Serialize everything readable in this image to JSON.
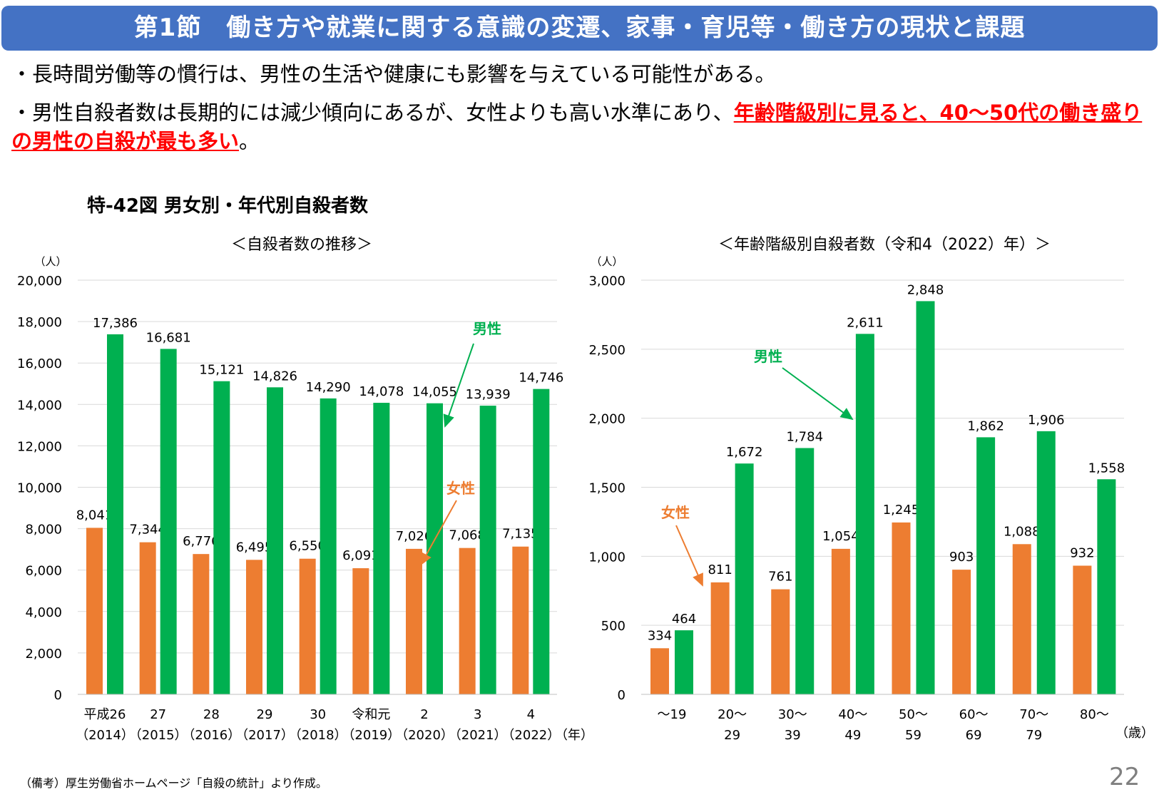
{
  "header": {
    "title": "第1節　働き方や就業に関する意識の変遷、家事・育児等・働き方の現状と課題"
  },
  "bullets": [
    {
      "text": "・長時間労働等の慣行は、男性の生活や健康にも影響を与えている可能性がある。"
    },
    {
      "text": "・男性自殺者数は長期的には減少傾向にあるが、女性よりも高い水準にあり、",
      "highlight": "年齢階級別に見ると、40～50代の働き盛りの男性の自殺が最も多い",
      "end": "。"
    }
  ],
  "figure_title": "特-42図 男女別・年代別自殺者数",
  "colors": {
    "header": "#4472C4",
    "female": "#ED7D31",
    "male": "#00B050",
    "highlight": "#FF0000"
  },
  "chart_data": [
    {
      "type": "bar",
      "title": "＜自殺者数の推移＞",
      "yunit": "（人）",
      "xunit": "（年）",
      "ylim": [
        0,
        20000
      ],
      "yticks": [
        "0",
        "2,000",
        "4,000",
        "6,000",
        "8,000",
        "10,000",
        "12,000",
        "14,000",
        "16,000",
        "18,000",
        "20,000"
      ],
      "grid": true,
      "categories": [
        [
          "平成26",
          "（2014）"
        ],
        [
          "27",
          "（2015）"
        ],
        [
          "28",
          "（2016）"
        ],
        [
          "29",
          "（2017）"
        ],
        [
          "30",
          "（2018）"
        ],
        [
          "令和元",
          "（2019）"
        ],
        [
          "2",
          "（2020）"
        ],
        [
          "3",
          "（2021）"
        ],
        [
          "4",
          "（2022）"
        ]
      ],
      "series": [
        {
          "name": "女性",
          "values": [
            8041,
            7344,
            6776,
            6495,
            6550,
            6091,
            7026,
            7068,
            7135
          ]
        },
        {
          "name": "男性",
          "values": [
            17386,
            16681,
            15121,
            14826,
            14290,
            14078,
            14055,
            13939,
            14746
          ]
        }
      ]
    },
    {
      "type": "bar",
      "title": "＜年齢階級別自殺者数（令和4（2022）年）＞",
      "yunit": "（人）",
      "xunit": "（歳）",
      "ylim": [
        0,
        3000
      ],
      "yticks": [
        "0",
        "500",
        "1,000",
        "1,500",
        "2,000",
        "2,500",
        "3,000"
      ],
      "grid": true,
      "categories": [
        [
          "～19",
          ""
        ],
        [
          "20～",
          "29"
        ],
        [
          "30～",
          "39"
        ],
        [
          "40～",
          "49"
        ],
        [
          "50～",
          "59"
        ],
        [
          "60～",
          "69"
        ],
        [
          "70～",
          "79"
        ],
        [
          "80～",
          ""
        ]
      ],
      "series": [
        {
          "name": "女性",
          "values": [
            334,
            811,
            761,
            1054,
            1245,
            903,
            1088,
            932
          ]
        },
        {
          "name": "男性",
          "values": [
            464,
            1672,
            1784,
            2611,
            2848,
            1862,
            1906,
            1558
          ]
        }
      ]
    }
  ],
  "footer": {
    "note": "（備考）厚生労働省ホームページ「自殺の統計」より作成。",
    "page": "22"
  }
}
